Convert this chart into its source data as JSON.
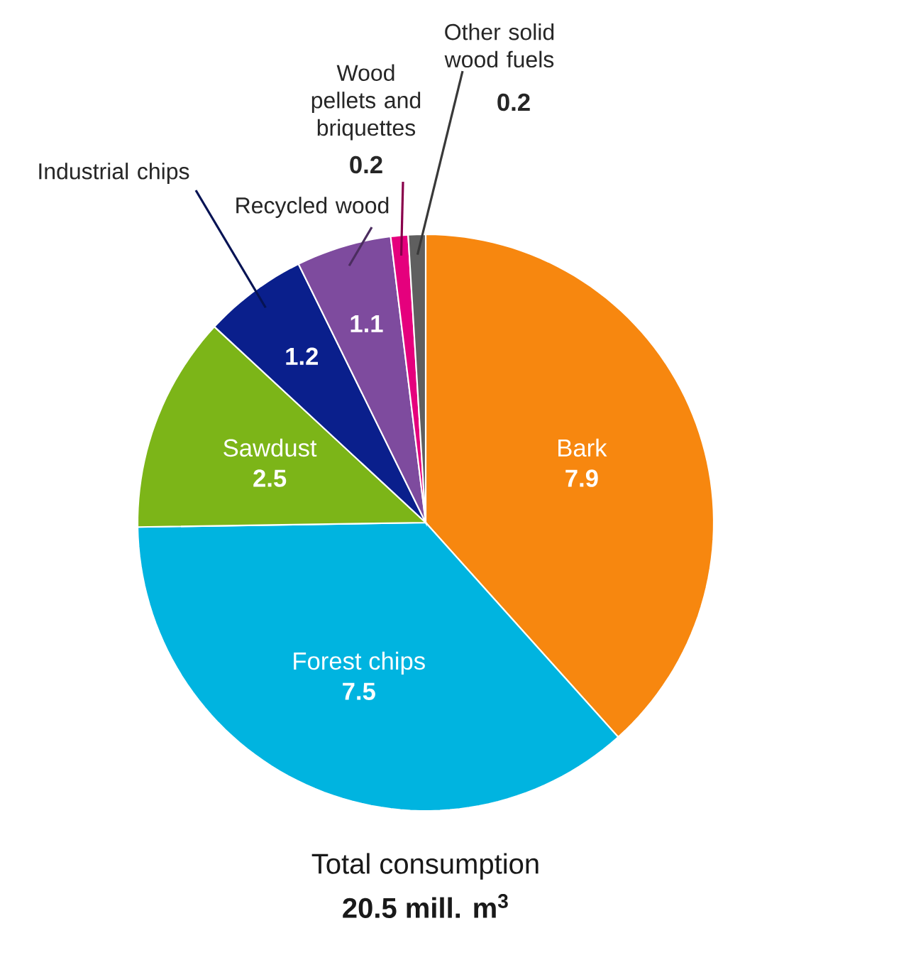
{
  "chart_data": {
    "type": "pie",
    "categories": [
      "Bark",
      "Forest chips",
      "Sawdust",
      "Industrial chips",
      "Recycled wood",
      "Wood pellets and briquettes",
      "Other solid wood fuels"
    ],
    "values": [
      7.9,
      7.5,
      2.5,
      1.2,
      1.1,
      0.2,
      0.2
    ],
    "colors": [
      "#f7870f",
      "#00b4e0",
      "#7cb518",
      "#0a1f8c",
      "#7e4b9e",
      "#e5007d",
      "#5f5f5f"
    ],
    "data_labels": true,
    "annotations": [
      "Total consumption",
      "20.5 mill. m$^{3}$"
    ]
  }
}
